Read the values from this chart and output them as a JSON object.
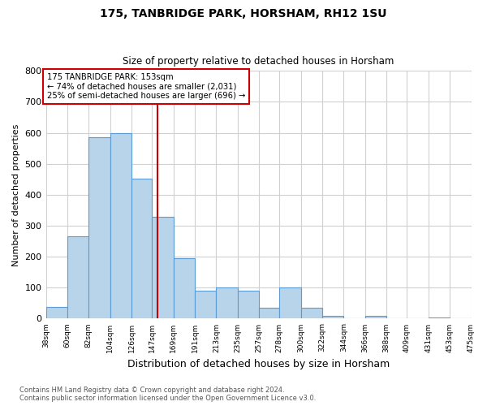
{
  "title": "175, TANBRIDGE PARK, HORSHAM, RH12 1SU",
  "subtitle": "Size of property relative to detached houses in Horsham",
  "xlabel": "Distribution of detached houses by size in Horsham",
  "ylabel": "Number of detached properties",
  "bar_edges": [
    38,
    60,
    82,
    104,
    126,
    147,
    169,
    191,
    213,
    235,
    257,
    278,
    300,
    322,
    344,
    366,
    388,
    409,
    431,
    453,
    475
  ],
  "bar_heights": [
    37,
    265,
    585,
    600,
    453,
    330,
    195,
    90,
    100,
    90,
    35,
    100,
    35,
    10,
    0,
    10,
    0,
    0,
    5,
    0,
    5
  ],
  "bar_color": "#b8d4ea",
  "bar_edgecolor": "#5b9bd5",
  "vline_x": 153,
  "vline_color": "#cc0000",
  "annotation_box_color": "#cc0000",
  "annotation_lines": [
    "175 TANBRIDGE PARK: 153sqm",
    "← 74% of detached houses are smaller (2,031)",
    "25% of semi-detached houses are larger (696) →"
  ],
  "ylim": [
    0,
    800
  ],
  "yticks": [
    0,
    100,
    200,
    300,
    400,
    500,
    600,
    700,
    800
  ],
  "tick_labels": [
    "38sqm",
    "60sqm",
    "82sqm",
    "104sqm",
    "126sqm",
    "147sqm",
    "169sqm",
    "191sqm",
    "213sqm",
    "235sqm",
    "257sqm",
    "278sqm",
    "300sqm",
    "322sqm",
    "344sqm",
    "366sqm",
    "388sqm",
    "409sqm",
    "431sqm",
    "453sqm",
    "475sqm"
  ],
  "footer_line1": "Contains HM Land Registry data © Crown copyright and database right 2024.",
  "footer_line2": "Contains public sector information licensed under the Open Government Licence v3.0.",
  "bg_color": "#ffffff",
  "grid_color": "#d0d0d0",
  "figsize": [
    6.0,
    5.0
  ],
  "dpi": 100
}
